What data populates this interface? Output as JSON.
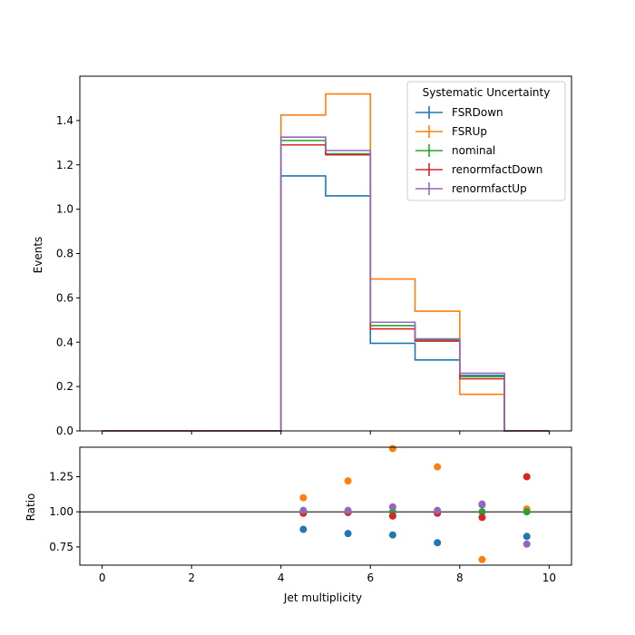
{
  "chart_data": [
    {
      "type": "line",
      "style": "step-histogram",
      "xlabel": "",
      "ylabel": "Events",
      "xlim": [
        -0.5,
        10.5
      ],
      "ylim": [
        0,
        1.6
      ],
      "x_ticks": [
        "0",
        "2",
        "4",
        "6",
        "8",
        "10"
      ],
      "x_tick_values": [
        0,
        2,
        4,
        6,
        8,
        10
      ],
      "x_tick_labels_shown": false,
      "y_ticks": [
        "0.0",
        "0.2",
        "0.4",
        "0.6",
        "0.8",
        "1.0",
        "1.2",
        "1.4"
      ],
      "y_tick_values": [
        0,
        0.2,
        0.4,
        0.6,
        0.8,
        1.0,
        1.2,
        1.4
      ],
      "grid": false,
      "legend": {
        "title": "Systematic Uncertainty",
        "placement": "top-right"
      },
      "bin_edges": [
        0,
        1,
        2,
        3,
        4,
        5,
        6,
        7,
        8,
        9,
        10
      ],
      "series": [
        {
          "name": "FSRDown",
          "color": "#1f77b4",
          "values": [
            0,
            0,
            0,
            0,
            1.15,
            1.06,
            0.395,
            0.32,
            0.25,
            0
          ]
        },
        {
          "name": "FSRUp",
          "color": "#ff7f0e",
          "values": [
            0,
            0,
            0,
            0,
            1.425,
            1.52,
            0.685,
            0.54,
            0.165,
            0
          ]
        },
        {
          "name": "nominal",
          "color": "#2ca02c",
          "values": [
            0,
            0,
            0,
            0,
            1.31,
            1.25,
            0.475,
            0.41,
            0.245,
            0
          ]
        },
        {
          "name": "renormfactDown",
          "color": "#d62728",
          "values": [
            0,
            0,
            0,
            0,
            1.29,
            1.245,
            0.46,
            0.405,
            0.235,
            0
          ]
        },
        {
          "name": "renormfactUp",
          "color": "#9467bd",
          "values": [
            0,
            0,
            0,
            0,
            1.325,
            1.265,
            0.49,
            0.415,
            0.26,
            0
          ]
        }
      ]
    },
    {
      "type": "scatter",
      "xlabel": "Jet multiplicity",
      "ylabel": "Ratio",
      "xlim": [
        -0.5,
        10.5
      ],
      "ylim": [
        0.62,
        1.46
      ],
      "x_ticks": [
        "0",
        "2",
        "4",
        "6",
        "8",
        "10"
      ],
      "x_tick_values": [
        0,
        2,
        4,
        6,
        8,
        10
      ],
      "y_ticks": [
        "0.75",
        "1.00",
        "1.25"
      ],
      "y_tick_values": [
        0.75,
        1.0,
        1.25
      ],
      "reference_line": 1.0,
      "grid": false,
      "x": [
        4.5,
        5.5,
        6.5,
        7.5,
        8.5,
        9.5
      ],
      "series": [
        {
          "name": "FSRDown",
          "color": "#1f77b4",
          "values": [
            0.875,
            0.845,
            0.835,
            0.78,
            1.05,
            0.825
          ]
        },
        {
          "name": "FSRUp",
          "color": "#ff7f0e",
          "values": [
            1.1,
            1.22,
            1.45,
            1.32,
            0.66,
            1.02
          ]
        },
        {
          "name": "nominal",
          "color": "#2ca02c",
          "values": [
            1.0,
            1.0,
            1.0,
            1.0,
            1.0,
            1.0
          ]
        },
        {
          "name": "renormfactDown",
          "color": "#d62728",
          "values": [
            0.99,
            0.995,
            0.97,
            0.99,
            0.96,
            1.25
          ]
        },
        {
          "name": "renormfactUp",
          "color": "#9467bd",
          "values": [
            1.01,
            1.01,
            1.035,
            1.01,
            1.055,
            0.77
          ]
        }
      ]
    }
  ]
}
